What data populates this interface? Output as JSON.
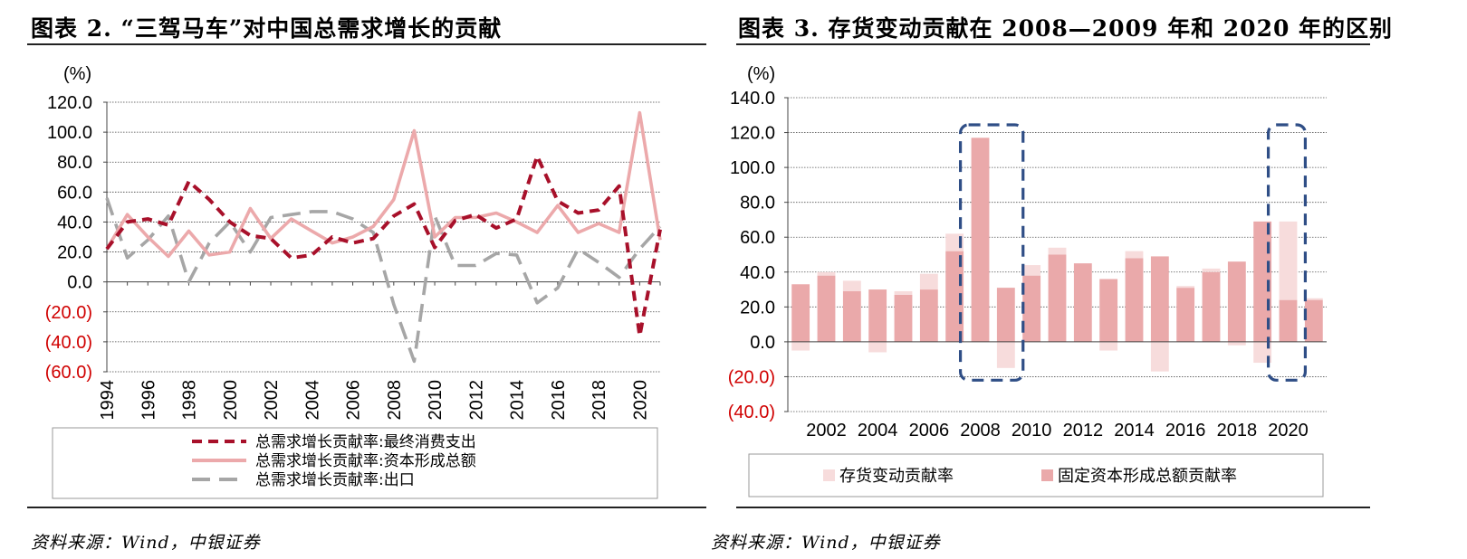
{
  "left": {
    "title": "图表 2. “三驾马车”对中国总需求增长的贡献",
    "source": "资料来源：Wind，中银证券",
    "unit_label": "(%)",
    "chart_data": {
      "type": "line",
      "x": [
        1994,
        1995,
        1996,
        1997,
        1998,
        1999,
        2000,
        2001,
        2002,
        2003,
        2004,
        2005,
        2006,
        2007,
        2008,
        2009,
        2010,
        2011,
        2012,
        2013,
        2014,
        2015,
        2016,
        2017,
        2018,
        2019,
        2020,
        2021
      ],
      "x_tick_labels": [
        "1994",
        "1996",
        "1998",
        "2000",
        "2002",
        "2004",
        "2006",
        "2008",
        "2010",
        "2012",
        "2014",
        "2016",
        "2018",
        "2020"
      ],
      "ylim": [
        -60,
        120
      ],
      "y_tick_labels": [
        "120.0",
        "100.0",
        "80.0",
        "60.0",
        "40.0",
        "20.0",
        "0.0",
        "(20.0)",
        "(40.0)",
        "(60.0)"
      ],
      "series": [
        {
          "name": "总需求增长贡献率:最终消费支出",
          "color": "#a8102a",
          "dash": "dashed",
          "values": [
            22,
            40,
            42,
            38,
            67,
            55,
            40,
            31,
            29,
            16,
            18,
            30,
            26,
            29,
            44,
            52,
            23,
            41,
            45,
            36,
            42,
            84,
            54,
            46,
            48,
            64,
            -36,
            35
          ]
        },
        {
          "name": "总需求增长贡献率:资本形成总额",
          "color": "#eca9ab",
          "dash": "solid",
          "values": [
            22,
            45,
            30,
            17,
            34,
            18,
            20,
            49,
            29,
            42,
            34,
            26,
            30,
            37,
            55,
            101,
            30,
            43,
            43,
            46,
            40,
            33,
            51,
            33,
            39,
            33,
            113,
            28
          ]
        },
        {
          "name": "总需求增长贡献率:出口",
          "color": "#a6a6a6",
          "dash": "dashed",
          "values": [
            56,
            16,
            28,
            44,
            0,
            26,
            40,
            20,
            43,
            45,
            47,
            47,
            42,
            33,
            -15,
            -53,
            44,
            11,
            11,
            19,
            18,
            -14,
            -4,
            22,
            13,
            3,
            22,
            37
          ]
        }
      ]
    }
  },
  "right": {
    "title": "图表 3. 存货变动贡献在 2008—2009 年和 2020 年的区别",
    "source": "资料来源：Wind，中银证券",
    "unit_label": "(%)",
    "chart_data": {
      "type": "bar",
      "categories": [
        2001,
        2002,
        2003,
        2004,
        2005,
        2006,
        2007,
        2008,
        2009,
        2010,
        2011,
        2012,
        2013,
        2014,
        2015,
        2016,
        2017,
        2018,
        2019,
        2020,
        2021
      ],
      "x_tick_labels": [
        "2002",
        "2004",
        "2006",
        "2008",
        "2010",
        "2012",
        "2014",
        "2016",
        "2018",
        "2020"
      ],
      "ylim": [
        -40,
        140
      ],
      "y_tick_labels": [
        "140.0",
        "120.0",
        "100.0",
        "80.0",
        "60.0",
        "40.0",
        "20.0",
        "0.0",
        "(20.0)",
        "(40.0)"
      ],
      "highlight_boxes": [
        [
          2008,
          2009
        ],
        [
          2020,
          2020
        ]
      ],
      "series": [
        {
          "name": "存货变动贡献率",
          "color": "#f7dcdc",
          "values": [
            -5,
            2,
            6,
            -6,
            2,
            9,
            10,
            0,
            -15,
            6,
            4,
            0,
            -5,
            4,
            -17,
            1,
            2,
            -2,
            -12,
            45,
            1
          ]
        },
        {
          "name": "固定资本形成总额贡献率",
          "color": "#eaa9aa",
          "values": [
            33,
            38,
            29,
            30,
            27,
            30,
            52,
            117,
            31,
            38,
            50,
            45,
            36,
            48,
            49,
            31,
            40,
            46,
            69,
            24,
            24
          ]
        }
      ]
    }
  }
}
